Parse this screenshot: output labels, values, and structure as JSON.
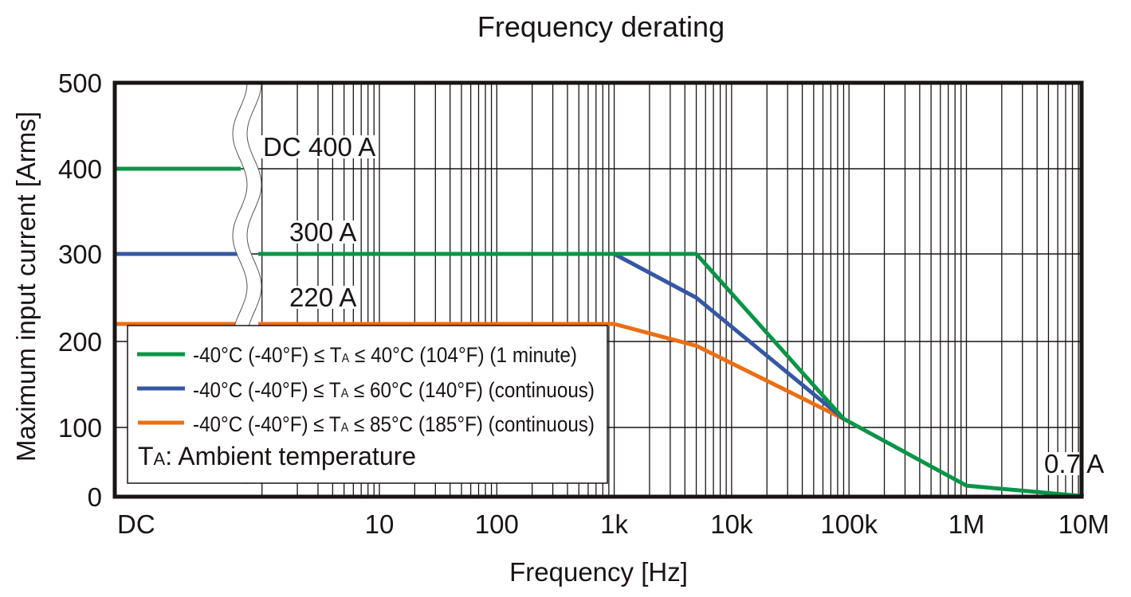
{
  "chart_data": {
    "type": "line",
    "title": "Frequency derating",
    "xlabel": "Frequency [Hz]",
    "ylabel": "Maximum input current [Arms]",
    "x_scale": "log with axis break after DC",
    "xlim": [
      "DC",
      10000000
    ],
    "ylim": [
      0,
      500
    ],
    "grid": true,
    "x_ticks": [
      {
        "label": "DC",
        "value": "DC"
      },
      {
        "label": "10",
        "value": 10
      },
      {
        "label": "100",
        "value": 100
      },
      {
        "label": "1k",
        "value": 1000
      },
      {
        "label": "10k",
        "value": 10000
      },
      {
        "label": "100k",
        "value": 100000
      },
      {
        "label": "1M",
        "value": 1000000
      },
      {
        "label": "10M",
        "value": 10000000
      }
    ],
    "y_ticks": [
      {
        "label": "0",
        "value": 0
      },
      {
        "label": "100",
        "value": 100
      },
      {
        "label": "200",
        "value": 200
      },
      {
        "label": "300",
        "value": 300
      },
      {
        "label": "400",
        "value": 400
      },
      {
        "label": "500",
        "value": 500
      }
    ],
    "series": [
      {
        "name": "-40°C (-40°F) ≤ TA ≤ 40°C (104°F) (1 minute)",
        "color": "#0a9447",
        "dc_value": 400,
        "points": [
          [
            1,
            300
          ],
          [
            1000,
            300
          ],
          [
            5000,
            300
          ],
          [
            90000,
            110
          ],
          [
            1000000,
            16
          ],
          [
            10000000,
            0.7
          ]
        ]
      },
      {
        "name": "-40°C (-40°F) ≤ TA ≤ 60°C (140°F) (continuous)",
        "color": "#3557a4",
        "dc_value": 300,
        "points": [
          [
            1,
            300
          ],
          [
            1000,
            300
          ],
          [
            5000,
            250
          ],
          [
            90000,
            110
          ]
        ]
      },
      {
        "name": "-40°C (-40°F) ≤ TA ≤ 85°C (185°F) (continuous)",
        "color": "#ea6f14",
        "dc_value": 220,
        "points": [
          [
            1,
            220
          ],
          [
            1000,
            220
          ],
          [
            5000,
            195
          ],
          [
            90000,
            110
          ]
        ]
      }
    ],
    "annotations": [
      {
        "text": "DC 400 A",
        "x": 3,
        "y": 430
      },
      {
        "text": "300 A",
        "x": 3,
        "y": 320
      },
      {
        "text": "220 A",
        "x": 3,
        "y": 240
      },
      {
        "text": "0.7 A",
        "x": 10000000,
        "y": 30
      }
    ],
    "legend": {
      "placement": "bottom-left",
      "entries": [
        {
          "prefix": "-40°C (-40°F) ≤ T",
          "sub": "A",
          "suffix": " ≤ 40°C (104°F) (1 minute)",
          "color": "#0a9447"
        },
        {
          "prefix": "-40°C (-40°F) ≤ T",
          "sub": "A",
          "suffix": " ≤ 60°C (140°F) (continuous)",
          "color": "#3557a4"
        },
        {
          "prefix": "-40°C (-40°F) ≤ T",
          "sub": "A",
          "suffix": " ≤ 85°C (185°F) (continuous)",
          "color": "#ea6f14"
        }
      ],
      "note": {
        "prefix": "T",
        "sub": "A",
        "suffix": ": Ambient temperature"
      }
    }
  }
}
